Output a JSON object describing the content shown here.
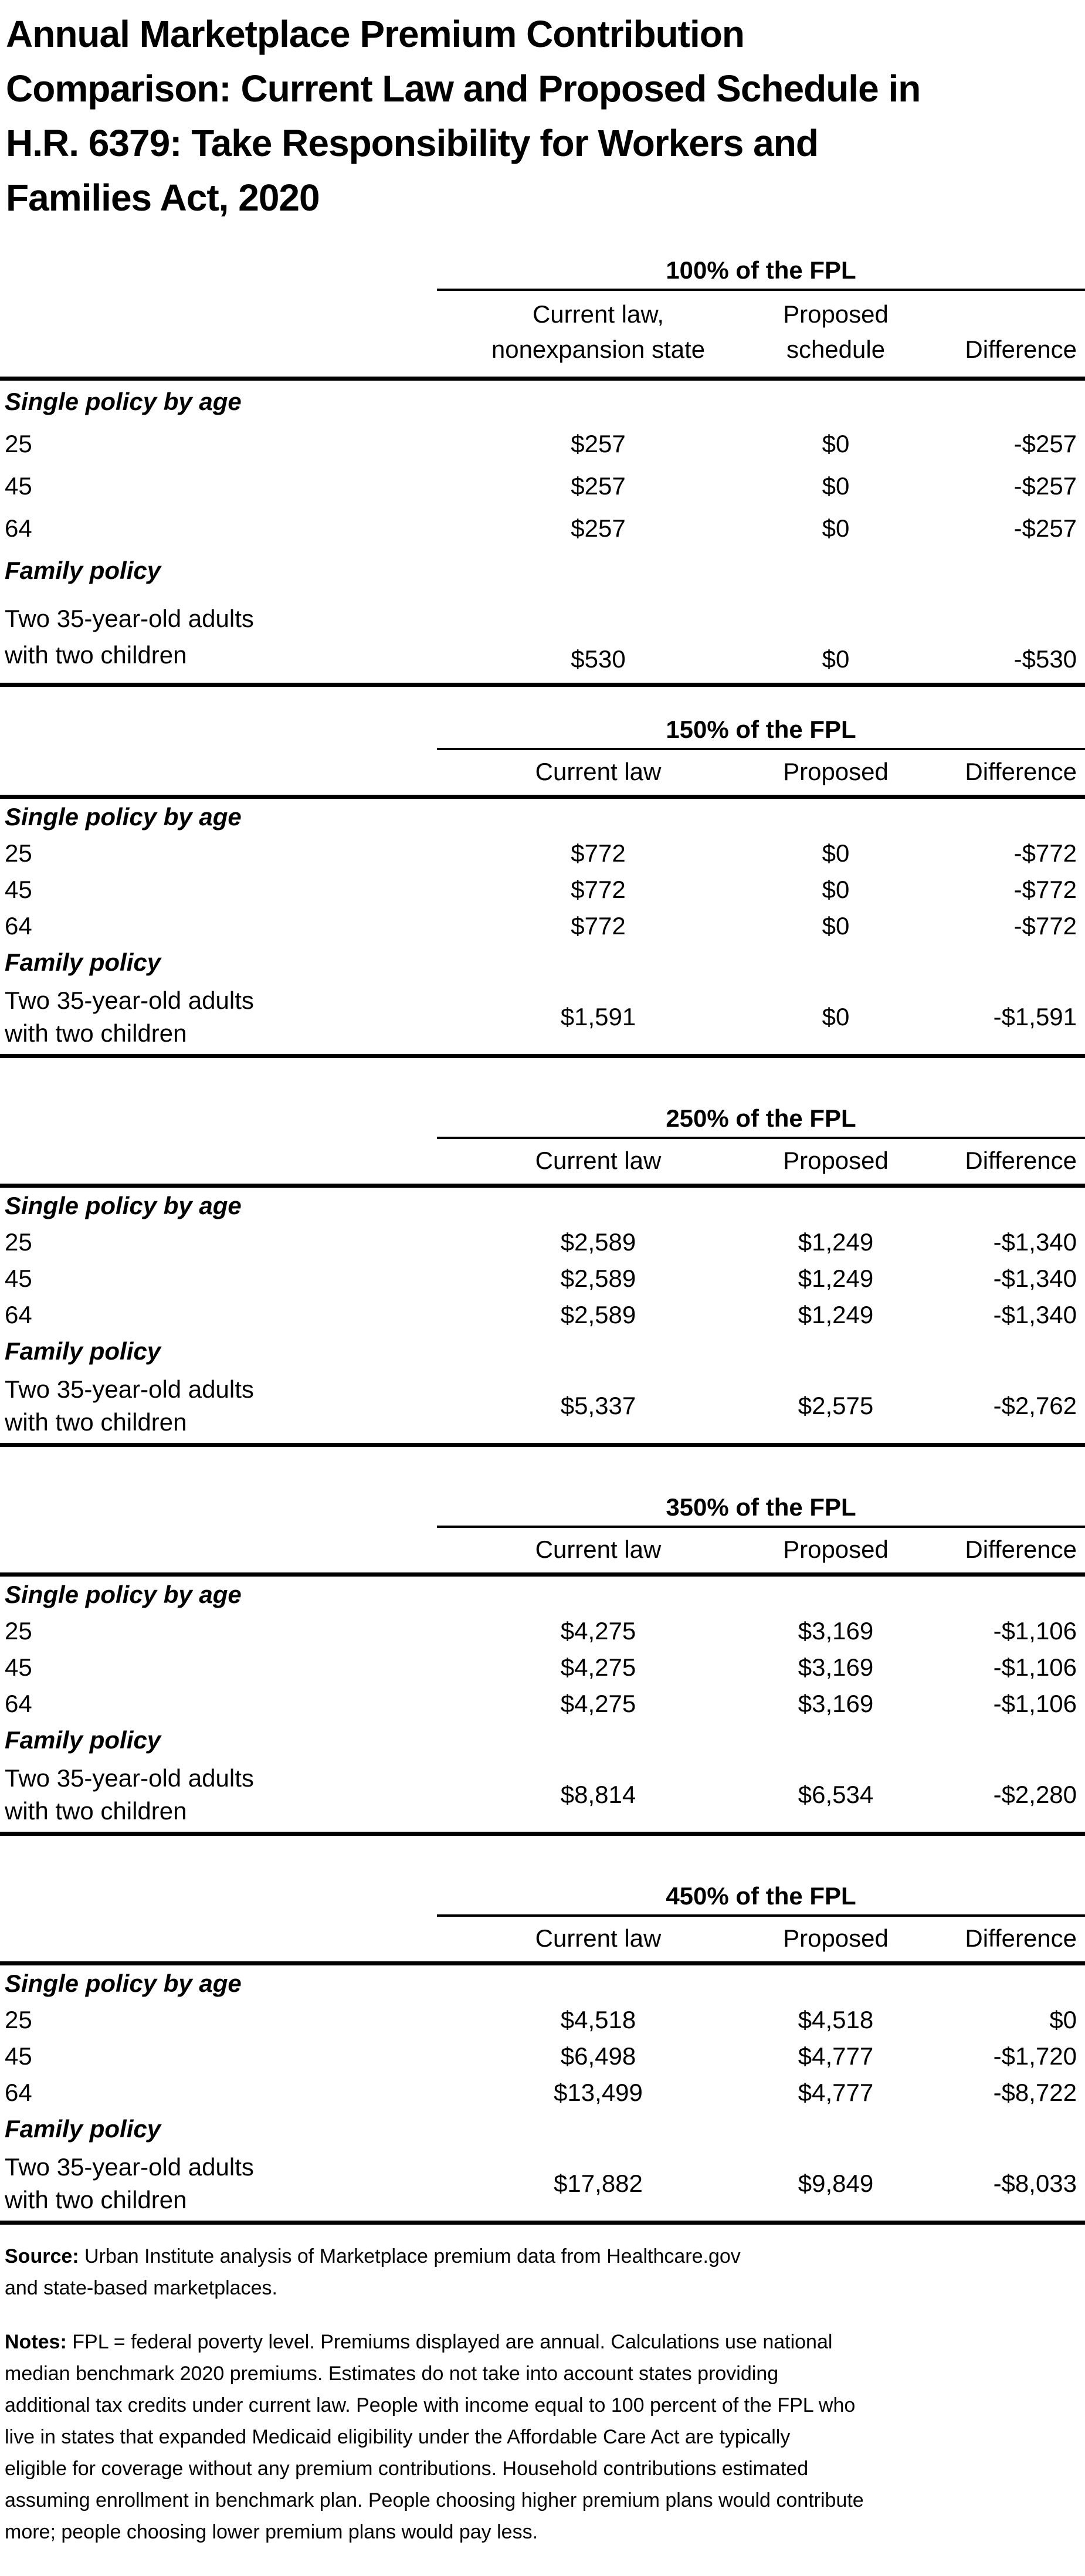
{
  "title_lines": [
    "Annual Marketplace Premium Contribution",
    "Comparison: Current Law and Proposed Schedule in",
    "H.R. 6379: Take Responsibility for Workers and",
    "Families Act, 2020"
  ],
  "row_labels": {
    "single_section": "Single policy by age",
    "ages": [
      "25",
      "45",
      "64"
    ],
    "family_section": "Family policy",
    "family": "Two 35-year-old adults with two children"
  },
  "tables": [
    {
      "fpl_header": "100% of the FPL",
      "columns": [
        "Current law,\nnonexpansion state",
        "Proposed\nschedule",
        "Difference"
      ],
      "rows": [
        {
          "current": "$257",
          "proposed": "$0",
          "difference": "-$257"
        },
        {
          "current": "$257",
          "proposed": "$0",
          "difference": "-$257"
        },
        {
          "current": "$257",
          "proposed": "$0",
          "difference": "-$257"
        }
      ],
      "family": {
        "current": "$530",
        "proposed": "$0",
        "difference": "-$530"
      }
    },
    {
      "fpl_header": "150% of the FPL",
      "columns": [
        "Current law",
        "Proposed",
        "Difference"
      ],
      "rows": [
        {
          "current": "$772",
          "proposed": "$0",
          "difference": "-$772"
        },
        {
          "current": "$772",
          "proposed": "$0",
          "difference": "-$772"
        },
        {
          "current": "$772",
          "proposed": "$0",
          "difference": "-$772"
        }
      ],
      "family": {
        "current": "$1,591",
        "proposed": "$0",
        "difference": "-$1,591"
      }
    },
    {
      "fpl_header": "250% of the FPL",
      "columns": [
        "Current law",
        "Proposed",
        "Difference"
      ],
      "rows": [
        {
          "current": "$2,589",
          "proposed": "$1,249",
          "difference": "-$1,340"
        },
        {
          "current": "$2,589",
          "proposed": "$1,249",
          "difference": "-$1,340"
        },
        {
          "current": "$2,589",
          "proposed": "$1,249",
          "difference": "-$1,340"
        }
      ],
      "family": {
        "current": "$5,337",
        "proposed": "$2,575",
        "difference": "-$2,762"
      }
    },
    {
      "fpl_header": "350% of the FPL",
      "columns": [
        "Current law",
        "Proposed",
        "Difference"
      ],
      "rows": [
        {
          "current": "$4,275",
          "proposed": "$3,169",
          "difference": "-$1,106"
        },
        {
          "current": "$4,275",
          "proposed": "$3,169",
          "difference": "-$1,106"
        },
        {
          "current": "$4,275",
          "proposed": "$3,169",
          "difference": "-$1,106"
        }
      ],
      "family": {
        "current": "$8,814",
        "proposed": "$6,534",
        "difference": "-$2,280"
      }
    },
    {
      "fpl_header": "450% of the FPL",
      "columns": [
        "Current law",
        "Proposed",
        "Difference"
      ],
      "rows": [
        {
          "current": "$4,518",
          "proposed": "$4,518",
          "difference": "$0"
        },
        {
          "current": "$6,498",
          "proposed": "$4,777",
          "difference": "-$1,720"
        },
        {
          "current": "$13,499",
          "proposed": "$4,777",
          "difference": "-$8,722"
        }
      ],
      "family": {
        "current": "$17,882",
        "proposed": "$9,849",
        "difference": "-$8,033"
      }
    }
  ],
  "source": {
    "label": "Source:",
    "lines": [
      "Urban Institute analysis of Marketplace premium data from Healthcare.gov",
      "and state-based marketplaces."
    ]
  },
  "notes": {
    "label": "Notes:",
    "lines": [
      "FPL = federal poverty level. Premiums displayed are annual. Calculations use national",
      "median benchmark 2020 premiums. Estimates do not take into account states providing",
      "additional tax credits under current law. People with income equal to 100 percent of the FPL who",
      "live in states that expanded Medicaid eligibility under the Affordable Care Act are typically",
      "eligible for coverage without any premium contributions. Household contributions estimated",
      "assuming enrollment in benchmark plan. People choosing higher premium plans would contribute",
      "more; people choosing lower premium plans would pay less."
    ]
  }
}
